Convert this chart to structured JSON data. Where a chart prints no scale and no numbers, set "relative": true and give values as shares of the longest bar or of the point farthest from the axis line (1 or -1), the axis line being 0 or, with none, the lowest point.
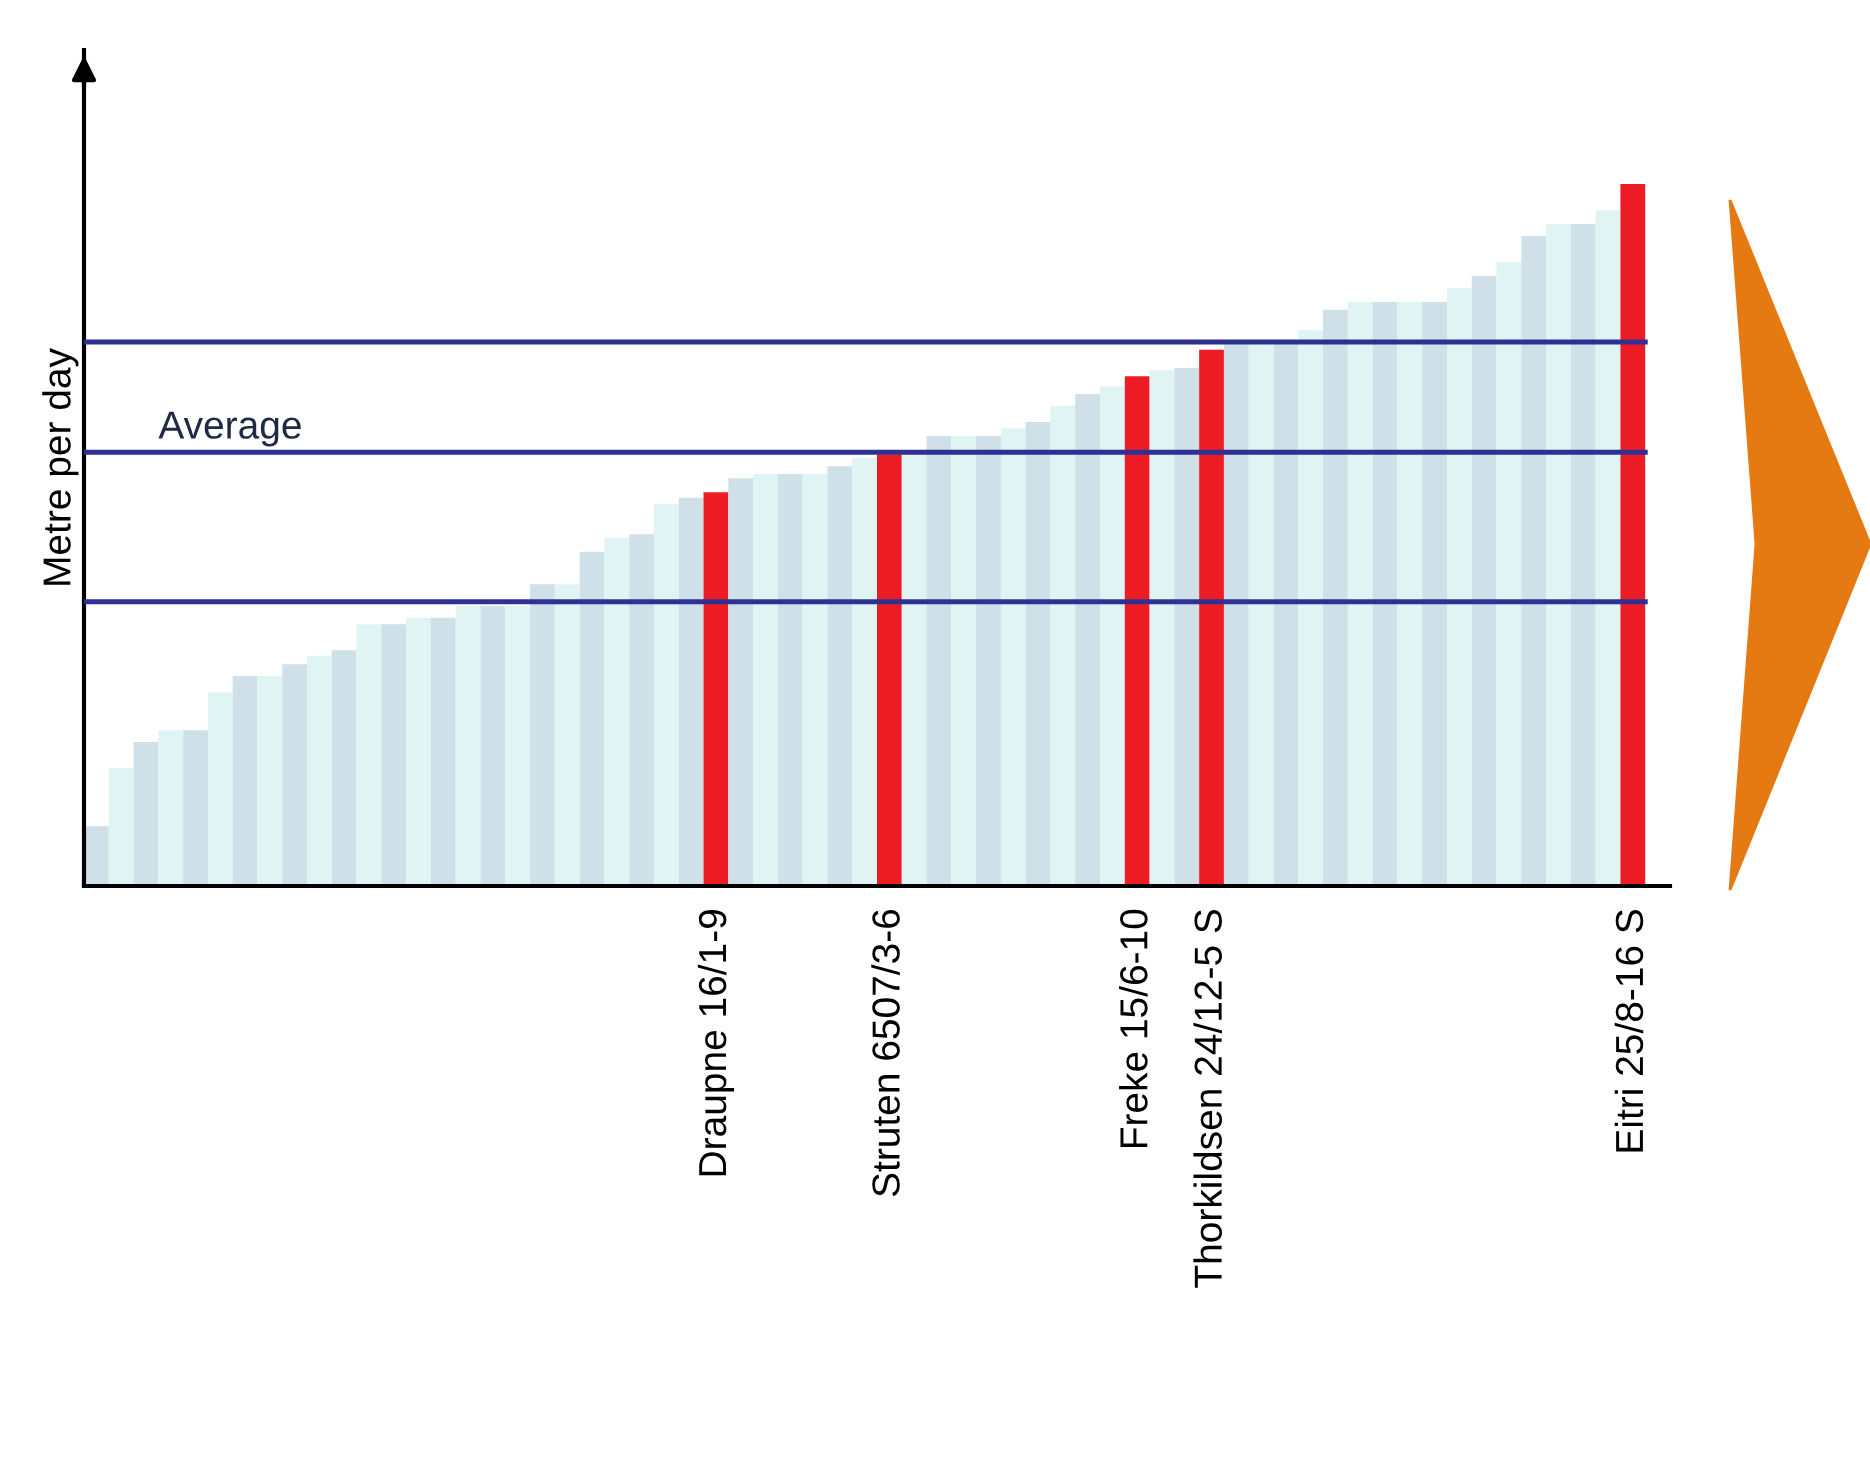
{
  "chart_data": {
    "type": "bar",
    "relative": true,
    "ylabel": "Metre per day",
    "categories": [
      null,
      null,
      null,
      null,
      null,
      null,
      null,
      null,
      null,
      null,
      null,
      null,
      null,
      null,
      null,
      null,
      null,
      null,
      null,
      null,
      null,
      null,
      null,
      null,
      null,
      "Draupne 16/1-9",
      null,
      null,
      null,
      null,
      null,
      null,
      "Struten 6507/3-6",
      null,
      null,
      null,
      null,
      null,
      null,
      null,
      null,
      null,
      "Freke 15/6-10",
      null,
      null,
      "Thorkildsen 24/12-5 S",
      null,
      null,
      null,
      null,
      null,
      null,
      null,
      null,
      null,
      null,
      null,
      null,
      null,
      null,
      null,
      null,
      "Eitri 25/8-16 S"
    ],
    "values": [
      0.085,
      0.168,
      0.205,
      0.222,
      0.222,
      0.276,
      0.299,
      0.299,
      0.316,
      0.328,
      0.336,
      0.373,
      0.373,
      0.382,
      0.382,
      0.399,
      0.399,
      0.399,
      0.43,
      0.43,
      0.476,
      0.496,
      0.501,
      0.544,
      0.553,
      0.561,
      0.581,
      0.587,
      0.587,
      0.587,
      0.598,
      0.61,
      0.615,
      0.615,
      0.641,
      0.641,
      0.641,
      0.652,
      0.661,
      0.684,
      0.701,
      0.712,
      0.726,
      0.735,
      0.738,
      0.764,
      0.772,
      0.772,
      0.772,
      0.792,
      0.821,
      0.832,
      0.832,
      0.832,
      0.832,
      0.852,
      0.869,
      0.889,
      0.926,
      0.943,
      0.943,
      0.963,
      1.0
    ],
    "colors": [
      "#cfe0e8",
      "#e0f4f4",
      "#cfe0e8",
      "#e0f4f4",
      "#cfe0e8",
      "#e0f4f4",
      "#cfe0e8",
      "#e0f4f4",
      "#cfe0e8",
      "#e0f4f4",
      "#cfe0e8",
      "#e0f4f4",
      "#cfe0e8",
      "#e0f4f4",
      "#cfe0e8",
      "#e0f4f4",
      "#cfe0e8",
      "#e0f4f4",
      "#cfe0e8",
      "#e0f4f4",
      "#cfe0e8",
      "#e0f4f4",
      "#cfe0e8",
      "#e0f4f4",
      "#cfe0e8",
      "#ed1c24",
      "#cfe0e8",
      "#e0f4f4",
      "#cfe0e8",
      "#e0f4f4",
      "#cfe0e8",
      "#e0f4f4",
      "#ed1c24",
      "#e0f4f4",
      "#cfe0e8",
      "#e0f4f4",
      "#cfe0e8",
      "#e0f4f4",
      "#cfe0e8",
      "#e0f4f4",
      "#cfe0e8",
      "#e0f4f4",
      "#ed1c24",
      "#e0f4f4",
      "#cfe0e8",
      "#ed1c24",
      "#cfe0e8",
      "#e0f4f4",
      "#cfe0e8",
      "#e0f4f4",
      "#cfe0e8",
      "#e0f4f4",
      "#cfe0e8",
      "#e0f4f4",
      "#cfe0e8",
      "#e0f4f4",
      "#cfe0e8",
      "#e0f4f4",
      "#cfe0e8",
      "#e0f4f4",
      "#cfe0e8",
      "#e0f4f4",
      "#ed1c24"
    ],
    "ref_lines": [
      {
        "axis": "y",
        "value": 0.775,
        "label": null,
        "color": "#2e3192"
      },
      {
        "axis": "y",
        "value": 0.618,
        "label": "Average",
        "color": "#2e3192"
      },
      {
        "axis": "y",
        "value": 0.405,
        "label": null,
        "color": "#2e3192"
      }
    ]
  }
}
